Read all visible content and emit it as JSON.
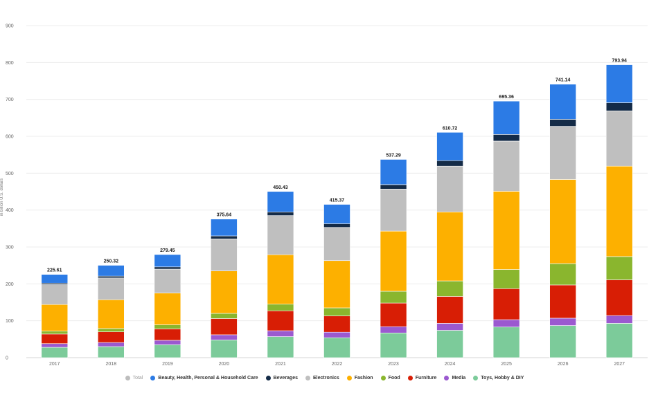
{
  "chart_data": {
    "type": "bar",
    "stacked": true,
    "title": "",
    "xlabel": "",
    "ylabel": "in billion U.S. dollars",
    "ylim": [
      0,
      900
    ],
    "yticks": [
      "0",
      "100",
      "200",
      "300",
      "400",
      "500",
      "600",
      "700",
      "800",
      "900"
    ],
    "categories": [
      "2017",
      "2018",
      "2019",
      "2020",
      "2021",
      "2022",
      "2023",
      "2024",
      "2025",
      "2026",
      "2027"
    ],
    "totals": [
      225.61,
      250.32,
      279.45,
      375.64,
      450.43,
      415.37,
      537.29,
      610.72,
      695.36,
      741.14,
      793.94
    ],
    "total_labels": [
      "225.61",
      "250.32",
      "279.45",
      "375.64",
      "450.43",
      "415.37",
      "537.29",
      "610.72",
      "695.36",
      "741.14",
      "793.94"
    ],
    "legend_position": "bottom",
    "series": [
      {
        "name": "Toys, Hobby & DIY",
        "color": "#7ccb9a",
        "values": [
          28,
          30,
          35,
          48,
          57,
          54,
          67,
          74,
          83,
          87,
          93
        ]
      },
      {
        "name": "Media",
        "color": "#9b59d0",
        "values": [
          10,
          11,
          12,
          14,
          16,
          15,
          17,
          19,
          20,
          20,
          21
        ]
      },
      {
        "name": "Furniture",
        "color": "#d81e05",
        "values": [
          26,
          29,
          31,
          44,
          54,
          44,
          64,
          73,
          84,
          90,
          97
        ]
      },
      {
        "name": "Food",
        "color": "#8ab62e",
        "values": [
          8,
          9,
          11,
          14,
          18,
          22,
          32,
          42,
          52,
          58,
          63
        ]
      },
      {
        "name": "Fashion",
        "color": "#fdb000",
        "values": [
          72,
          78,
          86,
          115,
          134,
          128,
          163,
          187,
          212,
          228,
          245
        ]
      },
      {
        "name": "Electronics",
        "color": "#bfbfbf",
        "values": [
          54,
          59,
          65,
          87,
          106,
          90,
          114,
          124,
          136,
          144,
          150
        ]
      },
      {
        "name": "Beverages",
        "color": "#142b47",
        "values": [
          4,
          5,
          6,
          8,
          10,
          10,
          12,
          15,
          18,
          19,
          22
        ]
      },
      {
        "name": "Beauty, Health, Personal & Household Care",
        "color": "#2c7be5",
        "values": [
          23.61,
          29.32,
          33.45,
          45.64,
          55.43,
          52.37,
          68.29,
          76.72,
          90.36,
          95.14,
          102.94
        ]
      }
    ]
  },
  "legend": [
    {
      "label": "Total",
      "color": "#bdbdbd",
      "muted": true
    },
    {
      "label": "Beauty, Health, Personal & Household Care",
      "color": "#2c7be5"
    },
    {
      "label": "Beverages",
      "color": "#142b47"
    },
    {
      "label": "Electronics",
      "color": "#bfbfbf"
    },
    {
      "label": "Fashion",
      "color": "#fdb000"
    },
    {
      "label": "Food",
      "color": "#8ab62e"
    },
    {
      "label": "Furniture",
      "color": "#d81e05"
    },
    {
      "label": "Media",
      "color": "#9b59d0"
    },
    {
      "label": "Toys, Hobby & DIY",
      "color": "#7ccb9a"
    }
  ]
}
